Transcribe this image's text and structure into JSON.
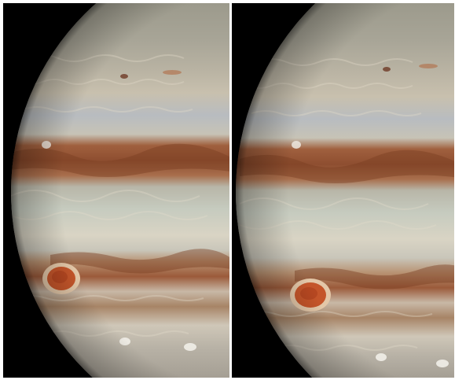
{
  "image": {
    "subject": "jupiter-stereo-pair",
    "panels": [
      {
        "id": "left",
        "content": "jupiter-limb-view"
      },
      {
        "id": "right",
        "content": "jupiter-limb-view"
      }
    ],
    "colors": {
      "space": "#000000",
      "background": "#ffffff",
      "great_red_spot": "#c4552a",
      "belt_brown": "#9b5a3a",
      "zone_cream": "#d9d4c4",
      "polar_gray": "#a9a899"
    }
  }
}
